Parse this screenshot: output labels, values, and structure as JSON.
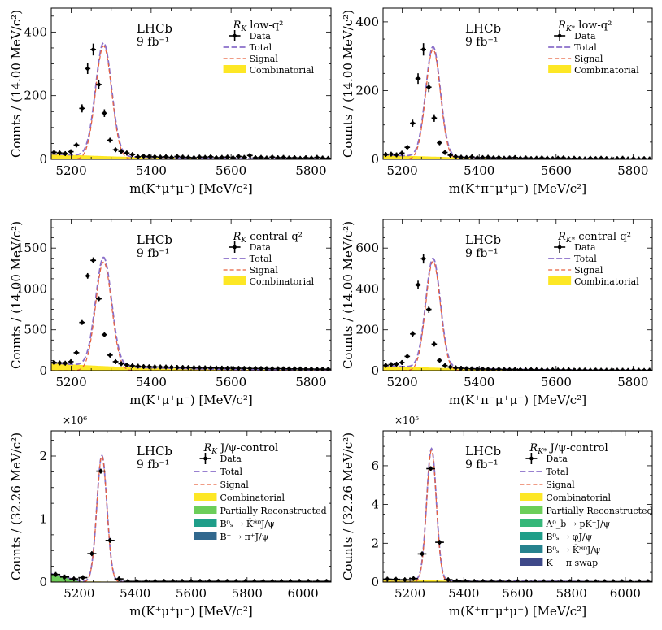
{
  "colors": {
    "data": "#000000",
    "total": "#8a6fc9",
    "signal": "#e8603c",
    "combinatorial": "#fde725",
    "partially_reconstructed": "#6cce59",
    "lambda_b": "#35b779",
    "bs_phi": "#1f9e89",
    "bs_kstar": "#26828e",
    "bplus_pi": "#31688e",
    "kpi_swap": "#3e4989"
  },
  "chart_data": [
    {
      "type": "histogram",
      "panel": "RK-low-q2",
      "experiment": "LHCb",
      "luminosity": "9 fb⁻¹",
      "title_main": "R",
      "title_sub": "K",
      "title_rest": " low-q²",
      "xlabel": "m(K⁺μ⁺μ⁻) [MeV/c²]",
      "ylabel": "Counts / (14.00 MeV/c²)",
      "xlim": [
        5150,
        5850
      ],
      "ylim": [
        0,
        475
      ],
      "xticks": [
        5200,
        5400,
        5600,
        5800
      ],
      "yticks": [
        0,
        200,
        400
      ],
      "multiplier": "",
      "bin_width": 14,
      "legend": [
        {
          "key": "data",
          "label": "Data",
          "style": "data"
        },
        {
          "key": "total",
          "label": "Total",
          "style": "line-total"
        },
        {
          "key": "signal",
          "label": "Signal",
          "style": "line-signal"
        },
        {
          "key": "comb",
          "label": "Combinatorial",
          "style": "fill",
          "color": "#fde725"
        }
      ],
      "peak": {
        "mu": 5281,
        "sigma": 20,
        "amp": 356
      },
      "combinatorial": {
        "type": "exp",
        "a": 17,
        "slope": 0.004
      },
      "partreco": null,
      "data_x": [
        5157,
        5171,
        5185,
        5199,
        5213,
        5227,
        5241,
        5255,
        5269,
        5283,
        5297,
        5311,
        5325,
        5339,
        5353,
        5367,
        5381,
        5395,
        5409,
        5423,
        5437,
        5451,
        5465,
        5479,
        5493,
        5507,
        5521,
        5535,
        5549,
        5563,
        5577,
        5591,
        5605,
        5619,
        5633,
        5647,
        5661,
        5675,
        5689,
        5703,
        5717,
        5731,
        5745,
        5759,
        5773,
        5787,
        5801,
        5815,
        5829,
        5843
      ],
      "data_y": [
        22,
        20,
        18,
        24,
        45,
        160,
        285,
        345,
        235,
        145,
        60,
        30,
        25,
        20,
        15,
        8,
        10,
        9,
        8,
        7,
        8,
        6,
        9,
        7,
        6,
        5,
        7,
        6,
        8,
        5,
        6,
        7,
        5,
        9,
        6,
        12,
        5,
        6,
        4,
        7,
        5,
        6,
        4,
        5,
        3,
        5,
        4,
        6,
        4,
        3
      ]
    },
    {
      "type": "histogram",
      "panel": "RKstar-low-q2",
      "experiment": "LHCb",
      "luminosity": "9 fb⁻¹",
      "title_main": "R",
      "title_sub": "K*",
      "title_rest": " low-q²",
      "xlabel": "m(K⁺π⁻μ⁺μ⁻) [MeV/c²]",
      "ylabel": "Counts / (14.00 MeV/c²)",
      "xlim": [
        5150,
        5850
      ],
      "ylim": [
        0,
        440
      ],
      "xticks": [
        5200,
        5400,
        5600,
        5800
      ],
      "yticks": [
        0,
        200,
        400
      ],
      "multiplier": "",
      "bin_width": 14,
      "legend": [
        {
          "key": "data",
          "label": "Data",
          "style": "data"
        },
        {
          "key": "total",
          "label": "Total",
          "style": "line-total"
        },
        {
          "key": "signal",
          "label": "Signal",
          "style": "line-signal"
        },
        {
          "key": "comb",
          "label": "Combinatorial",
          "style": "fill",
          "color": "#fde725"
        }
      ],
      "peak": {
        "mu": 5280,
        "sigma": 19,
        "amp": 320
      },
      "combinatorial": {
        "type": "exp",
        "a": 13,
        "slope": 0.004
      },
      "partreco": null,
      "data_x": [
        5157,
        5171,
        5185,
        5199,
        5213,
        5227,
        5241,
        5255,
        5269,
        5283,
        5297,
        5311,
        5325,
        5339,
        5353,
        5367,
        5381,
        5395,
        5409,
        5423,
        5437,
        5451,
        5465,
        5479,
        5493,
        5507,
        5521,
        5535,
        5549,
        5563,
        5577,
        5591,
        5605,
        5619,
        5633,
        5647,
        5661,
        5675,
        5689,
        5703,
        5717,
        5731,
        5745,
        5759,
        5773,
        5787,
        5801,
        5815,
        5829,
        5843
      ],
      "data_y": [
        14,
        15,
        13,
        18,
        35,
        105,
        235,
        320,
        210,
        120,
        48,
        20,
        12,
        8,
        6,
        5,
        7,
        4,
        5,
        6,
        4,
        5,
        3,
        4,
        5,
        3,
        4,
        2,
        3,
        4,
        3,
        2,
        3,
        4,
        2,
        3,
        2,
        1,
        3,
        2,
        3,
        2,
        1,
        2,
        3,
        1,
        2,
        1,
        2,
        1
      ]
    },
    {
      "type": "histogram",
      "panel": "RK-central-q2",
      "experiment": "LHCb",
      "luminosity": "9 fb⁻¹",
      "title_main": "R",
      "title_sub": "K",
      "title_rest": " central-q²",
      "xlabel": "m(K⁺μ⁺μ⁻) [MeV/c²]",
      "ylabel": "Counts / (14.00 MeV/c²)",
      "xlim": [
        5150,
        5850
      ],
      "ylim": [
        0,
        1850
      ],
      "xticks": [
        5200,
        5400,
        5600,
        5800
      ],
      "yticks": [
        0,
        500,
        1000,
        1500
      ],
      "multiplier": "",
      "bin_width": 14,
      "legend": [
        {
          "key": "data",
          "label": "Data",
          "style": "data"
        },
        {
          "key": "total",
          "label": "Total",
          "style": "line-total"
        },
        {
          "key": "signal",
          "label": "Signal",
          "style": "line-signal"
        },
        {
          "key": "comb",
          "label": "Combinatorial",
          "style": "fill",
          "color": "#fde725"
        }
      ],
      "peak": {
        "mu": 5281,
        "sigma": 20,
        "amp": 1330
      },
      "combinatorial": {
        "type": "exp",
        "a": 95,
        "slope": 0.004
      },
      "partreco": null,
      "data_x": [
        5157,
        5171,
        5185,
        5199,
        5213,
        5227,
        5241,
        5255,
        5269,
        5283,
        5297,
        5311,
        5325,
        5339,
        5353,
        5367,
        5381,
        5395,
        5409,
        5423,
        5437,
        5451,
        5465,
        5479,
        5493,
        5507,
        5521,
        5535,
        5549,
        5563,
        5577,
        5591,
        5605,
        5619,
        5633,
        5647,
        5661,
        5675,
        5689,
        5703,
        5717,
        5731,
        5745,
        5759,
        5773,
        5787,
        5801,
        5815,
        5829,
        5843
      ],
      "data_y": [
        100,
        95,
        92,
        110,
        220,
        590,
        1160,
        1350,
        880,
        440,
        190,
        110,
        85,
        70,
        60,
        55,
        50,
        48,
        46,
        45,
        44,
        42,
        40,
        39,
        38,
        36,
        35,
        34,
        33,
        32,
        31,
        30,
        30,
        29,
        28,
        27,
        27,
        26,
        25,
        24,
        24,
        23,
        22,
        22,
        21,
        20,
        20,
        19,
        19,
        18
      ]
    },
    {
      "type": "histogram",
      "panel": "RKstar-central-q2",
      "experiment": "LHCb",
      "luminosity": "9 fb⁻¹",
      "title_main": "R",
      "title_sub": "K*",
      "title_rest": " central-q²",
      "xlabel": "m(K⁺π⁻μ⁺μ⁻) [MeV/c²]",
      "ylabel": "Counts / (14.00 MeV/c²)",
      "xlim": [
        5150,
        5850
      ],
      "ylim": [
        0,
        740
      ],
      "xticks": [
        5200,
        5400,
        5600,
        5800
      ],
      "yticks": [
        0,
        200,
        400,
        600
      ],
      "multiplier": "",
      "bin_width": 14,
      "legend": [
        {
          "key": "data",
          "label": "Data",
          "style": "data"
        },
        {
          "key": "total",
          "label": "Total",
          "style": "line-total"
        },
        {
          "key": "signal",
          "label": "Signal",
          "style": "line-signal"
        },
        {
          "key": "comb",
          "label": "Combinatorial",
          "style": "fill",
          "color": "#fde725"
        }
      ],
      "peak": {
        "mu": 5280,
        "sigma": 19,
        "amp": 535
      },
      "combinatorial": {
        "type": "exp",
        "a": 25,
        "slope": 0.004
      },
      "partreco": null,
      "data_x": [
        5157,
        5171,
        5185,
        5199,
        5213,
        5227,
        5241,
        5255,
        5269,
        5283,
        5297,
        5311,
        5325,
        5339,
        5353,
        5367,
        5381,
        5395,
        5409,
        5423,
        5437,
        5451,
        5465,
        5479,
        5493,
        5507,
        5521,
        5535,
        5549,
        5563,
        5577,
        5591,
        5605,
        5619,
        5633,
        5647,
        5661,
        5675,
        5689,
        5703,
        5717,
        5731,
        5745,
        5759,
        5773,
        5787,
        5801,
        5815,
        5829,
        5843
      ],
      "data_y": [
        26,
        30,
        32,
        40,
        70,
        180,
        420,
        548,
        300,
        130,
        50,
        25,
        18,
        14,
        12,
        10,
        9,
        8,
        8,
        7,
        6,
        7,
        6,
        5,
        6,
        5,
        4,
        5,
        4,
        4,
        3,
        4,
        3,
        3,
        4,
        2,
        3,
        3,
        2,
        3,
        2,
        2,
        3,
        2,
        2,
        1,
        2,
        2,
        1,
        2
      ]
    },
    {
      "type": "histogram",
      "panel": "RK-jpsi-control",
      "experiment": "LHCb",
      "luminosity": "9 fb⁻¹",
      "title_main": "R",
      "title_sub": "K",
      "title_rest": " J/ψ-control",
      "xlabel": "m(K⁺μ⁺μ⁻) [MeV/c²]",
      "ylabel": "Counts / (32.26 MeV/c²)",
      "xlim": [
        5100,
        6100
      ],
      "ylim": [
        0,
        2.4
      ],
      "xticks": [
        5200,
        5400,
        5600,
        5800,
        6000
      ],
      "yticks": [
        0,
        1,
        2
      ],
      "multiplier": "×10⁶",
      "bin_width": 32.26,
      "legend": [
        {
          "key": "data",
          "label": "Data",
          "style": "data"
        },
        {
          "key": "total",
          "label": "Total",
          "style": "line-total"
        },
        {
          "key": "signal",
          "label": "Signal",
          "style": "line-signal"
        },
        {
          "key": "comb",
          "label": "Combinatorial",
          "style": "fill",
          "color": "#fde725"
        },
        {
          "key": "partreco",
          "label": "Partially Reconstructed",
          "style": "fill",
          "color": "#6cce59"
        },
        {
          "key": "bs_kstar",
          "label": "B⁰ₛ → K̄*⁰J/ψ",
          "style": "fill",
          "color": "#1f9e89"
        },
        {
          "key": "bplus_pi",
          "label": "B⁺ → π⁺J/ψ",
          "style": "fill",
          "color": "#31688e"
        }
      ],
      "peak": {
        "mu": 5281,
        "sigma": 18,
        "amp": 2.0
      },
      "combinatorial": {
        "type": "exp",
        "a": 0.012,
        "slope": 0.002
      },
      "partreco": {
        "end": 5210,
        "height": 0.12
      },
      "data_x": [
        5116,
        5148,
        5181,
        5213,
        5245,
        5277,
        5310,
        5342,
        5374,
        5406,
        5439,
        5471,
        5503,
        5535,
        5568,
        5600,
        5632,
        5665,
        5697,
        5729,
        5761,
        5794,
        5826,
        5858,
        5890,
        5923,
        5955,
        5987,
        6019,
        6052,
        6084
      ],
      "data_y": [
        0.12,
        0.08,
        0.05,
        0.07,
        0.45,
        1.76,
        0.66,
        0.05,
        0.01,
        0.01,
        0.01,
        0.01,
        0.01,
        0.01,
        0.01,
        0.01,
        0.01,
        0.01,
        0.01,
        0.01,
        0.01,
        0.01,
        0.01,
        0.01,
        0.01,
        0.01,
        0.01,
        0.01,
        0.01,
        0.01,
        0.01
      ]
    },
    {
      "type": "histogram",
      "panel": "RKstar-jpsi-control",
      "experiment": "LHCb",
      "luminosity": "9 fb⁻¹",
      "title_main": "R",
      "title_sub": "K*",
      "title_rest": " J/ψ-control",
      "xlabel": "m(K⁺π⁻μ⁺μ⁻) [MeV/c²]",
      "ylabel": "Counts / (32.26 MeV/c²)",
      "xlim": [
        5100,
        6100
      ],
      "ylim": [
        0,
        7.8
      ],
      "xticks": [
        5200,
        5400,
        5600,
        5800,
        6000
      ],
      "yticks": [
        0,
        2,
        4,
        6
      ],
      "multiplier": "×10⁵",
      "bin_width": 32.26,
      "legend": [
        {
          "key": "data",
          "label": "Data",
          "style": "data"
        },
        {
          "key": "total",
          "label": "Total",
          "style": "line-total"
        },
        {
          "key": "signal",
          "label": "Signal",
          "style": "line-signal"
        },
        {
          "key": "comb",
          "label": "Combinatorial",
          "style": "fill",
          "color": "#fde725"
        },
        {
          "key": "partreco",
          "label": "Partially Reconstructed",
          "style": "fill",
          "color": "#6cce59"
        },
        {
          "key": "lambda_b",
          "label": "Λ⁰_b → pK⁻J/ψ",
          "style": "fill",
          "color": "#35b779"
        },
        {
          "key": "bs_phi",
          "label": "B⁰ₛ → φJ/ψ",
          "style": "fill",
          "color": "#1f9e89"
        },
        {
          "key": "bs_kstar",
          "label": "B⁰ₛ → K̄*⁰J/ψ",
          "style": "fill",
          "color": "#26828e"
        },
        {
          "key": "kpi_swap",
          "label": "K − π swap",
          "style": "fill",
          "color": "#3e4989"
        }
      ],
      "peak": {
        "mu": 5280,
        "sigma": 18,
        "amp": 6.8
      },
      "combinatorial": {
        "type": "exp",
        "a": 0.12,
        "slope": 0.002
      },
      "partreco": null,
      "data_x": [
        5116,
        5148,
        5181,
        5213,
        5245,
        5277,
        5310,
        5342,
        5374,
        5406,
        5439,
        5471,
        5503,
        5535,
        5568,
        5600,
        5632,
        5665,
        5697,
        5729,
        5761,
        5794,
        5826,
        5858,
        5890,
        5923,
        5955,
        5987,
        6019,
        6052,
        6084
      ],
      "data_y": [
        0.15,
        0.14,
        0.12,
        0.18,
        1.45,
        5.85,
        2.05,
        0.12,
        0.05,
        0.04,
        0.03,
        0.03,
        0.03,
        0.03,
        0.02,
        0.02,
        0.02,
        0.02,
        0.02,
        0.02,
        0.02,
        0.02,
        0.02,
        0.02,
        0.02,
        0.02,
        0.02,
        0.02,
        0.02,
        0.02,
        0.02
      ]
    }
  ]
}
